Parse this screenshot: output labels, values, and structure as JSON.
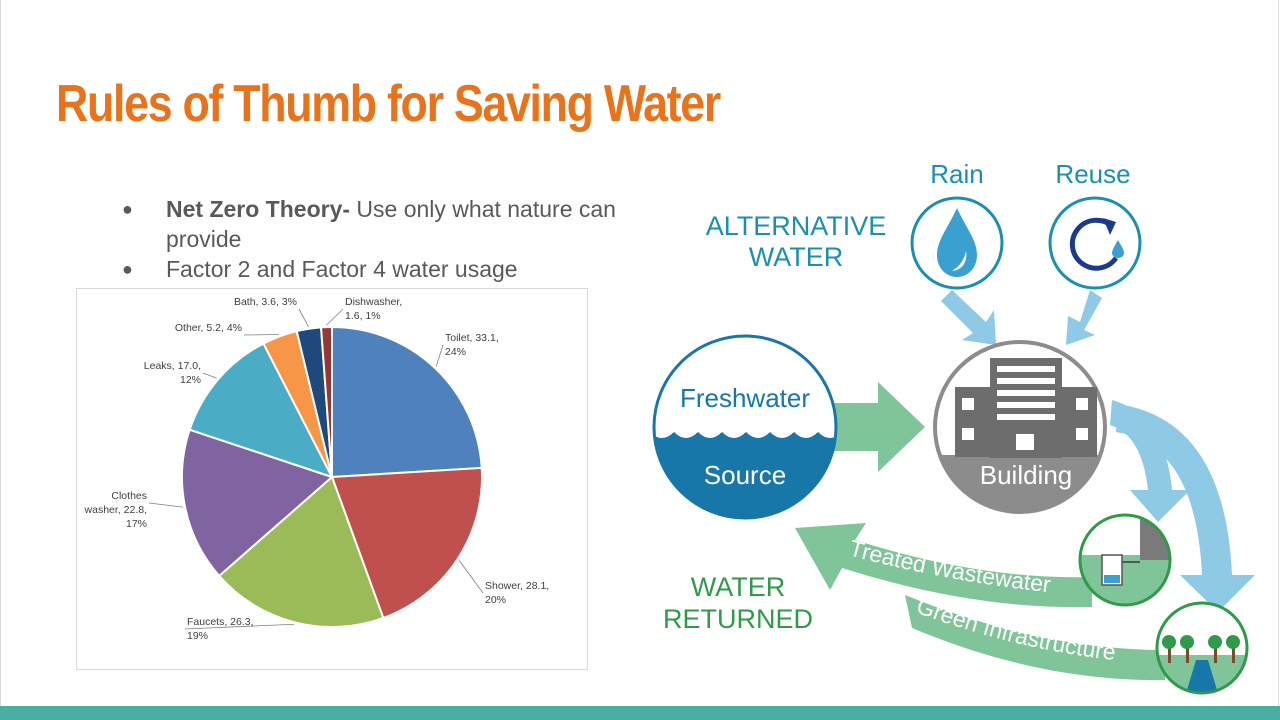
{
  "slide": {
    "title": "Rules of Thumb for Saving Water",
    "bullets": [
      {
        "bold": "Net Zero Theory-",
        "text": " Use only what nature can provide"
      },
      {
        "bold": "",
        "text": "Factor 2 and Factor 4 water usage"
      }
    ]
  },
  "chart_data": {
    "type": "pie",
    "slices": [
      {
        "label": "Toilet, 33.1,",
        "label2": "24%",
        "value": 33.1,
        "percent": 24,
        "color": "#4f81bd"
      },
      {
        "label": "Shower, 28.1,",
        "label2": "20%",
        "value": 28.1,
        "percent": 20,
        "color": "#c0504d"
      },
      {
        "label": "Faucets, 26.3,",
        "label2": "19%",
        "value": 26.3,
        "percent": 19,
        "color": "#9bbb59"
      },
      {
        "label": "Clothes",
        "label2": "washer, 22.8,",
        "label3": "17%",
        "value": 22.8,
        "percent": 17,
        "color": "#8064a2"
      },
      {
        "label": "Leaks, 17.0,",
        "label2": "12%",
        "value": 17.0,
        "percent": 12,
        "color": "#4bacc6"
      },
      {
        "label": "Other, 5.2, 4%",
        "value": 5.2,
        "percent": 4,
        "color": "#f79646"
      },
      {
        "label": "Bath, 3.6, 3%",
        "value": 3.6,
        "percent": 3,
        "color": "#1f497d"
      },
      {
        "label": "Dishwasher,",
        "label2": "1.6, 1%",
        "value": 1.6,
        "percent": 1,
        "color": "#953735"
      }
    ]
  },
  "diagram": {
    "alternative_water": [
      "ALTERNATIVE",
      "WATER"
    ],
    "rain_label": "Rain",
    "reuse_label": "Reuse",
    "freshwater_label": "Freshwater",
    "source_label": "Source",
    "building_label": "Building",
    "water_returned": [
      "WATER",
      "RETURNED"
    ],
    "treated_wastewater": "Treated Wastewater",
    "green_infrastructure": "Green Infrastructure",
    "colors": {
      "teal_text": "#1a8fb0",
      "light_blue": "#8ecae6",
      "green": "#80c49a",
      "dark_green": "#2e9a4a",
      "gray": "#8c8c8c",
      "source_blue": "#1677a8"
    },
    "icons": [
      "raindrop-icon",
      "reuse-cycle-icon",
      "building-icon",
      "septic-tank-icon",
      "trees-icon"
    ]
  }
}
